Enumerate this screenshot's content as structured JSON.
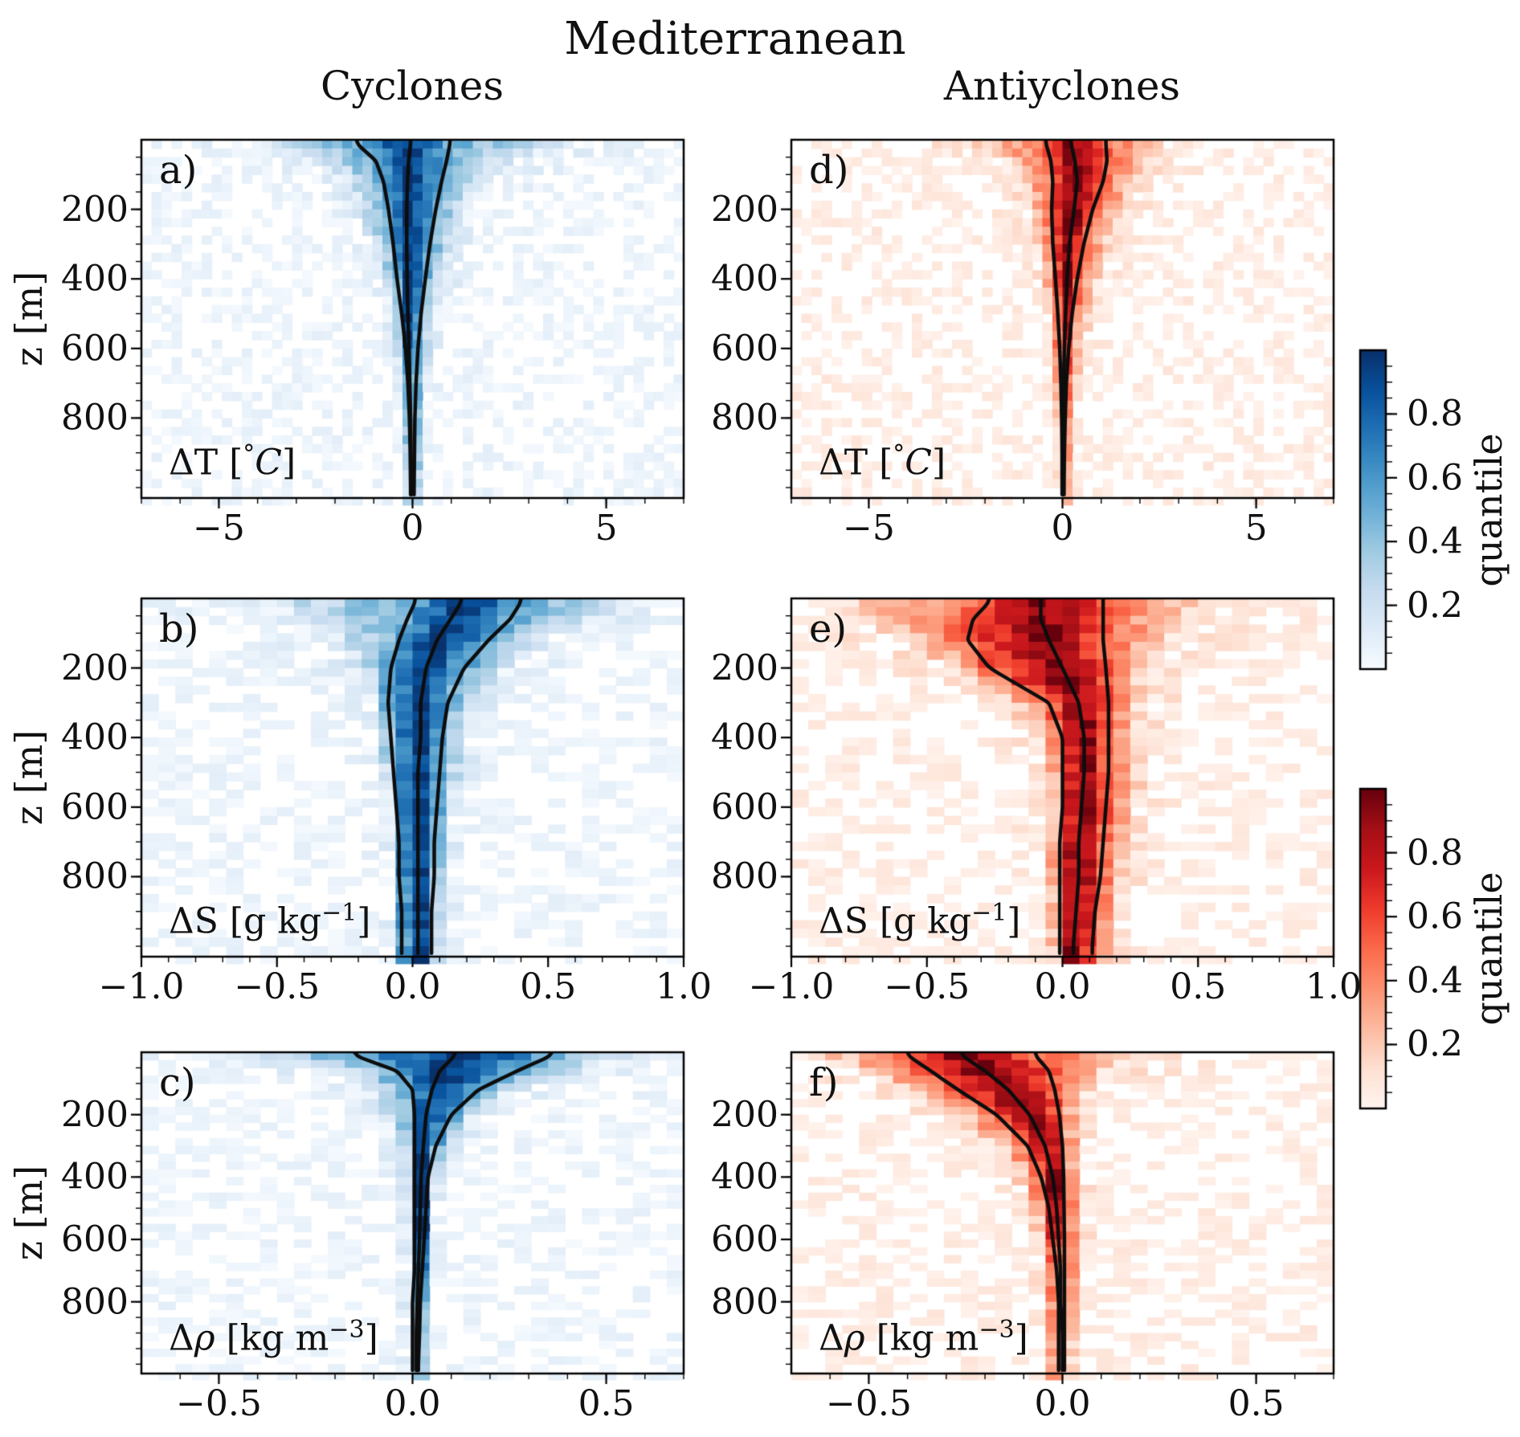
{
  "figure": {
    "title": "Mediterranean",
    "column_headers": [
      "Cyclones",
      "Antiyclones"
    ],
    "background": "#ffffff",
    "contour_color": "#0d0d0d"
  },
  "axis": {
    "ylabel": "z [m]",
    "zlim": [
      0,
      1030
    ],
    "yticks": [
      200,
      400,
      600,
      800
    ],
    "ytick_labels": [
      "200",
      "400",
      "600",
      "800"
    ],
    "yminor_step": 50
  },
  "colorbars": [
    {
      "id": "blue",
      "label": "quantile",
      "cmap": "Blues",
      "ticks": [
        0.8,
        0.6,
        0.4,
        0.2
      ],
      "tick_labels": [
        "0.8",
        "0.6",
        "0.4",
        "0.2"
      ],
      "minor_step": 0.05,
      "top_color": "#08306b",
      "bottom_color": "#f7fbff"
    },
    {
      "id": "red",
      "label": "quantile",
      "cmap": "Reds",
      "ticks": [
        0.8,
        0.6,
        0.4,
        0.2
      ],
      "tick_labels": [
        "0.8",
        "0.6",
        "0.4",
        "0.2"
      ],
      "minor_step": 0.05,
      "top_color": "#67000d",
      "bottom_color": "#fff5f0"
    }
  ],
  "cmaps": {
    "Blues": [
      "#f7fbff",
      "#deebf7",
      "#c6dbef",
      "#9ecae1",
      "#6baed6",
      "#4292c6",
      "#2171b5",
      "#08519c",
      "#08306b"
    ],
    "Reds": [
      "#fff5f0",
      "#fee0d2",
      "#fcbba1",
      "#fc9272",
      "#fb6a4a",
      "#ef3b2c",
      "#cb181d",
      "#a50f15",
      "#67000d"
    ]
  },
  "chart_data": [
    {
      "type": "heatmap",
      "id": "a",
      "letter": "a)",
      "column": "Cyclones",
      "row": 0,
      "col": 0,
      "cmap": "Blues",
      "xlabel_parts": [
        {
          "t": "ΔT [",
          "s": "n"
        },
        {
          "t": "°",
          "s": "sup"
        },
        {
          "t": "C",
          "s": "i"
        },
        {
          "t": "]",
          "s": "n"
        }
      ],
      "xlabel_text": "ΔT [°C]",
      "units": "°C",
      "xlim": [
        -7,
        7
      ],
      "xticks": [
        -5,
        0,
        5
      ],
      "xtick_labels": [
        "−5",
        "0",
        "5"
      ],
      "xminor_step": 1,
      "nx": 54,
      "depths": [
        10,
        60,
        120,
        200,
        300,
        400,
        500,
        600,
        700,
        800,
        900,
        1000
      ],
      "q_lower": [
        -1.45,
        -0.95,
        -0.75,
        -0.62,
        -0.5,
        -0.4,
        -0.28,
        -0.18,
        -0.12,
        -0.08,
        -0.06,
        -0.05
      ],
      "q_median": [
        -0.05,
        -0.1,
        -0.13,
        -0.15,
        -0.15,
        -0.14,
        -0.12,
        -0.09,
        -0.07,
        -0.05,
        -0.04,
        -0.03
      ],
      "q_upper": [
        0.97,
        0.88,
        0.75,
        0.6,
        0.45,
        0.33,
        0.22,
        0.14,
        0.09,
        0.06,
        0.05,
        0.04
      ],
      "q_lo_tail": [
        -4.3,
        -2.6,
        -1.9,
        -1.5,
        -1.1,
        -0.85,
        -0.6,
        -0.45,
        -0.35,
        -0.28,
        -0.22,
        -0.18
      ],
      "q_hi_tail": [
        4.3,
        2.7,
        2.0,
        1.5,
        1.15,
        0.9,
        0.65,
        0.5,
        0.4,
        0.3,
        0.25,
        0.2
      ]
    },
    {
      "type": "heatmap",
      "id": "d",
      "letter": "d)",
      "column": "Antiyclones",
      "row": 0,
      "col": 1,
      "cmap": "Reds",
      "xlabel_parts": [
        {
          "t": "ΔT [",
          "s": "n"
        },
        {
          "t": "°",
          "s": "sup"
        },
        {
          "t": "C",
          "s": "i"
        },
        {
          "t": "]",
          "s": "n"
        }
      ],
      "xlabel_text": "ΔT [°C]",
      "units": "°C",
      "xlim": [
        -7,
        7
      ],
      "xticks": [
        -5,
        0,
        5
      ],
      "xtick_labels": [
        "−5",
        "0",
        "5"
      ],
      "xminor_step": 1,
      "nx": 54,
      "depths": [
        10,
        60,
        120,
        200,
        300,
        400,
        500,
        600,
        700,
        800,
        900,
        1000
      ],
      "q_lower": [
        -0.43,
        -0.3,
        -0.25,
        -0.28,
        -0.25,
        -0.18,
        -0.12,
        -0.07,
        -0.04,
        -0.02,
        -0.01,
        -0.01
      ],
      "q_median": [
        0.22,
        0.32,
        0.38,
        0.3,
        0.18,
        0.12,
        0.08,
        0.05,
        0.03,
        0.02,
        0.02,
        0.01
      ],
      "q_upper": [
        1.12,
        1.15,
        1.05,
        0.78,
        0.55,
        0.38,
        0.25,
        0.16,
        0.1,
        0.07,
        0.05,
        0.04
      ],
      "q_lo_tail": [
        -2.5,
        -1.6,
        -1.2,
        -0.9,
        -0.7,
        -0.55,
        -0.4,
        -0.3,
        -0.22,
        -0.17,
        -0.13,
        -0.1
      ],
      "q_hi_tail": [
        2.6,
        2.4,
        2.1,
        1.7,
        1.3,
        1.0,
        0.75,
        0.55,
        0.4,
        0.3,
        0.22,
        0.18
      ]
    },
    {
      "type": "heatmap",
      "id": "b",
      "letter": "b)",
      "column": "Cyclones",
      "row": 1,
      "col": 0,
      "cmap": "Blues",
      "xlabel_parts": [
        {
          "t": "ΔS [g kg",
          "s": "n"
        },
        {
          "t": "−1",
          "s": "sup"
        },
        {
          "t": "]",
          "s": "n"
        }
      ],
      "xlabel_text": "ΔS [g kg⁻¹]",
      "units": "g kg⁻¹",
      "xlim": [
        -1,
        1
      ],
      "xticks": [
        -1.0,
        -0.5,
        0.0,
        0.5,
        1.0
      ],
      "xtick_labels": [
        "−1.0",
        "−0.5",
        "0.0",
        "0.5",
        "1.0"
      ],
      "xminor_step": 0.1,
      "nx": 32,
      "depths": [
        10,
        60,
        120,
        200,
        300,
        400,
        500,
        600,
        700,
        800,
        900,
        1000
      ],
      "q_lower": [
        0.01,
        -0.02,
        -0.05,
        -0.08,
        -0.09,
        -0.08,
        -0.07,
        -0.06,
        -0.05,
        -0.05,
        -0.04,
        -0.04
      ],
      "q_median": [
        0.18,
        0.14,
        0.09,
        0.05,
        0.03,
        0.03,
        0.02,
        0.02,
        0.02,
        0.02,
        0.02,
        0.02
      ],
      "q_upper": [
        0.4,
        0.36,
        0.28,
        0.19,
        0.13,
        0.11,
        0.1,
        0.09,
        0.08,
        0.08,
        0.07,
        0.07
      ],
      "q_lo_tail": [
        -0.62,
        -0.45,
        -0.32,
        -0.22,
        -0.16,
        -0.12,
        -0.1,
        -0.09,
        -0.08,
        -0.07,
        -0.07,
        -0.06
      ],
      "q_hi_tail": [
        0.88,
        0.72,
        0.52,
        0.36,
        0.27,
        0.22,
        0.19,
        0.16,
        0.14,
        0.13,
        0.12,
        0.11
      ]
    },
    {
      "type": "heatmap",
      "id": "e",
      "letter": "e)",
      "column": "Antiyclones",
      "row": 1,
      "col": 1,
      "cmap": "Reds",
      "xlabel_parts": [
        {
          "t": "ΔS [g kg",
          "s": "n"
        },
        {
          "t": "−1",
          "s": "sup"
        },
        {
          "t": "]",
          "s": "n"
        }
      ],
      "xlabel_text": "ΔS [g kg⁻¹]",
      "units": "g kg⁻¹",
      "xlim": [
        -1,
        1
      ],
      "xticks": [
        -1.0,
        -0.5,
        0.0,
        0.5,
        1.0
      ],
      "xtick_labels": [
        "−1.0",
        "−0.5",
        "0.0",
        "0.5",
        "1.0"
      ],
      "xminor_step": 0.1,
      "nx": 32,
      "depths": [
        10,
        60,
        120,
        200,
        300,
        400,
        500,
        600,
        700,
        800,
        900,
        1000
      ],
      "q_lower": [
        -0.27,
        -0.33,
        -0.35,
        -0.27,
        -0.05,
        0.0,
        0.0,
        0.0,
        -0.01,
        -0.01,
        -0.01,
        -0.01
      ],
      "q_median": [
        -0.08,
        -0.08,
        -0.05,
        0.0,
        0.06,
        0.08,
        0.08,
        0.07,
        0.06,
        0.06,
        0.05,
        0.04
      ],
      "q_upper": [
        0.15,
        0.15,
        0.15,
        0.16,
        0.17,
        0.17,
        0.17,
        0.16,
        0.15,
        0.14,
        0.12,
        0.11
      ],
      "q_lo_tail": [
        -0.88,
        -0.75,
        -0.6,
        -0.45,
        -0.22,
        -0.1,
        -0.06,
        -0.05,
        -0.05,
        -0.05,
        -0.04,
        -0.04
      ],
      "q_hi_tail": [
        0.55,
        0.48,
        0.4,
        0.32,
        0.3,
        0.3,
        0.3,
        0.28,
        0.27,
        0.25,
        0.22,
        0.2
      ]
    },
    {
      "type": "heatmap",
      "id": "c",
      "letter": "c)",
      "column": "Cyclones",
      "row": 2,
      "col": 0,
      "cmap": "Blues",
      "xlabel_parts": [
        {
          "t": "Δ",
          "s": "n"
        },
        {
          "t": "ρ",
          "s": "i"
        },
        {
          "t": " [kg m",
          "s": "n"
        },
        {
          "t": "−3",
          "s": "sup"
        },
        {
          "t": "]",
          "s": "n"
        }
      ],
      "xlabel_text": "Δρ [kg m⁻³]",
      "units": "kg m⁻³",
      "xlim": [
        -0.7,
        0.7
      ],
      "xticks": [
        -0.5,
        0.0,
        0.5
      ],
      "xtick_labels": [
        "−0.5",
        "0.0",
        "0.5"
      ],
      "xminor_step": 0.1,
      "nx": 32,
      "depths": [
        10,
        60,
        120,
        200,
        300,
        400,
        500,
        600,
        700,
        800,
        900,
        1000
      ],
      "q_lower": [
        -0.15,
        -0.04,
        0.0,
        0.005,
        0.005,
        0.005,
        0.005,
        0.005,
        0.005,
        0.0,
        0.0,
        0.0
      ],
      "q_median": [
        0.11,
        0.07,
        0.05,
        0.035,
        0.028,
        0.022,
        0.02,
        0.018,
        0.015,
        0.012,
        0.01,
        0.01
      ],
      "q_upper": [
        0.36,
        0.27,
        0.17,
        0.1,
        0.06,
        0.04,
        0.035,
        0.03,
        0.025,
        0.02,
        0.018,
        0.015
      ],
      "q_lo_tail": [
        -0.48,
        -0.22,
        -0.13,
        -0.08,
        -0.05,
        -0.035,
        -0.03,
        -0.025,
        -0.02,
        -0.02,
        -0.015,
        -0.015
      ],
      "q_hi_tail": [
        0.6,
        0.45,
        0.28,
        0.17,
        0.11,
        0.08,
        0.06,
        0.05,
        0.045,
        0.04,
        0.035,
        0.03
      ]
    },
    {
      "type": "heatmap",
      "id": "f",
      "letter": "f)",
      "column": "Antiyclones",
      "row": 2,
      "col": 1,
      "cmap": "Reds",
      "xlabel_parts": [
        {
          "t": "Δ",
          "s": "n"
        },
        {
          "t": "ρ",
          "s": "i"
        },
        {
          "t": " [kg m",
          "s": "n"
        },
        {
          "t": "−3",
          "s": "sup"
        },
        {
          "t": "]",
          "s": "n"
        }
      ],
      "xlabel_text": "Δρ [kg m⁻³]",
      "units": "kg m⁻³",
      "xlim": [
        -0.7,
        0.7
      ],
      "xticks": [
        -0.5,
        0.0,
        0.5
      ],
      "xtick_labels": [
        "−0.5",
        "0.0",
        "0.5"
      ],
      "xminor_step": 0.1,
      "nx": 32,
      "depths": [
        10,
        60,
        120,
        200,
        300,
        400,
        500,
        600,
        700,
        800,
        900,
        1000
      ],
      "q_lower": [
        -0.4,
        -0.34,
        -0.27,
        -0.17,
        -0.09,
        -0.055,
        -0.035,
        -0.025,
        -0.015,
        -0.01,
        -0.01,
        -0.01
      ],
      "q_median": [
        -0.26,
        -0.2,
        -0.14,
        -0.085,
        -0.045,
        -0.025,
        -0.015,
        -0.01,
        -0.005,
        -0.005,
        0.0,
        0.0
      ],
      "q_upper": [
        -0.07,
        -0.035,
        -0.02,
        -0.008,
        0.0,
        0.003,
        0.004,
        0.005,
        0.005,
        0.005,
        0.005,
        0.005
      ],
      "q_lo_tail": [
        -0.65,
        -0.55,
        -0.44,
        -0.3,
        -0.18,
        -0.12,
        -0.09,
        -0.07,
        -0.055,
        -0.045,
        -0.04,
        -0.035
      ],
      "q_hi_tail": [
        0.2,
        0.13,
        0.08,
        0.05,
        0.04,
        0.045,
        0.05,
        0.045,
        0.04,
        0.035,
        0.03,
        0.025
      ]
    }
  ]
}
